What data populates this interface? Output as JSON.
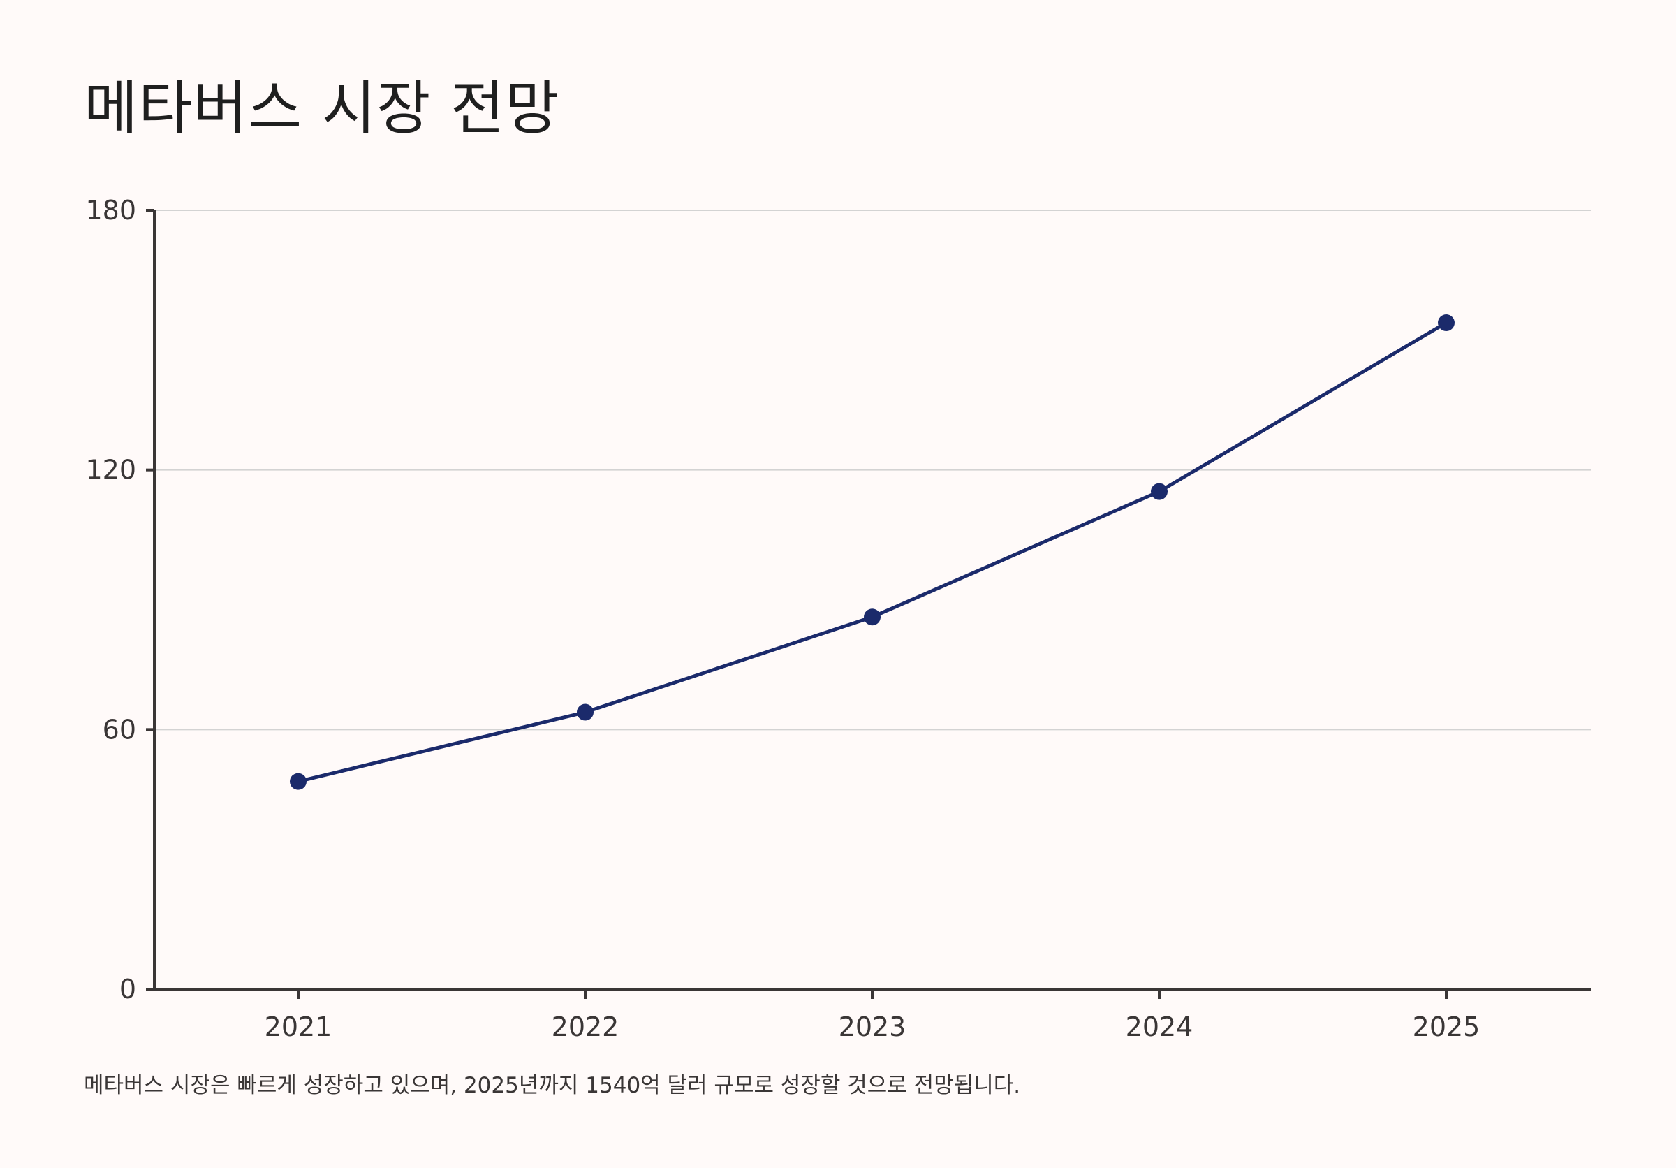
{
  "title": "메타버스 시장 전망",
  "caption": "메타버스 시장은 빠르게 성장하고 있으며, 2025년까지 1540억 달러 규모로 성장할 것으로 전망됩니다.",
  "colors": {
    "background": "#fffaf9",
    "line": "#1b2a6b",
    "grid": "#d3d3d3",
    "axis": "#3a3636"
  },
  "chart_data": {
    "type": "line",
    "categories": [
      "2021",
      "2022",
      "2023",
      "2024",
      "2025"
    ],
    "series": [
      {
        "values": [
          48,
          64,
          86,
          115,
          154
        ]
      }
    ],
    "yticks": [
      "0",
      "60",
      "120",
      "180"
    ],
    "ylim": [
      0,
      180
    ],
    "grid": true,
    "legend": "none"
  }
}
